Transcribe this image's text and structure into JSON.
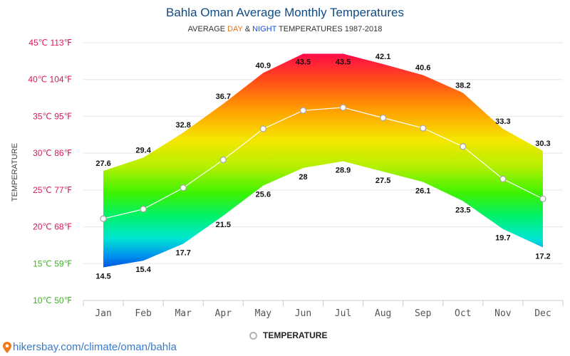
{
  "title": "Bahla Oman Average Monthly Temperatures",
  "subtitle": {
    "prefix": "AVERAGE ",
    "day": "DAY",
    "mid": " & ",
    "night": "NIGHT",
    "suffix": " TEMPERATURES 1987-2018"
  },
  "legend_label": "TEMPERATURE",
  "footer_link": "hikersbay.com/climate/oman/bahla",
  "colors": {
    "title": "#0f4b86",
    "day_word": "#e8761a",
    "night_word": "#1a4fd6",
    "mean_line": "#ffffff",
    "footer": "#3a7bc8"
  },
  "chart_data": {
    "type": "area",
    "title": "Bahla Oman Average Monthly Temperatures",
    "ylabel": "TEMPERATURE",
    "ylim": [
      10,
      45
    ],
    "grid": true,
    "legend_position": "bottom",
    "y_ticks": [
      {
        "value": 45,
        "label": "45℃ 113℉",
        "color": "#e0145a"
      },
      {
        "value": 40,
        "label": "40℃ 104℉",
        "color": "#e0145a"
      },
      {
        "value": 35,
        "label": "35℃ 95℉",
        "color": "#e0145a"
      },
      {
        "value": 30,
        "label": "30℃ 86℉",
        "color": "#e0145a"
      },
      {
        "value": 25,
        "label": "25℃ 77℉",
        "color": "#e0145a"
      },
      {
        "value": 20,
        "label": "20℃ 68℉",
        "color": "#e0145a"
      },
      {
        "value": 15,
        "label": "15℃ 59℉",
        "color": "#3cb521"
      },
      {
        "value": 10,
        "label": "10℃ 50℉",
        "color": "#3cb521"
      }
    ],
    "categories": [
      "Jan",
      "Feb",
      "Mar",
      "Apr",
      "May",
      "Jun",
      "Jul",
      "Aug",
      "Sep",
      "Oct",
      "Nov",
      "Dec"
    ],
    "series": [
      {
        "values": [
          27.6,
          29.4,
          32.8,
          36.7,
          40.9,
          43.5,
          43.5,
          42.1,
          40.6,
          38.2,
          33.3,
          30.3
        ]
      },
      {
        "values": [
          14.5,
          15.4,
          17.7,
          21.5,
          25.6,
          28,
          28.9,
          27.5,
          26.1,
          23.5,
          19.7,
          17.2
        ]
      },
      {
        "name": "TEMPERATURE",
        "values": [
          21.1,
          22.4,
          25.3,
          29.1,
          33.3,
          35.8,
          36.2,
          34.8,
          33.4,
          30.9,
          26.5,
          23.8
        ]
      }
    ]
  }
}
